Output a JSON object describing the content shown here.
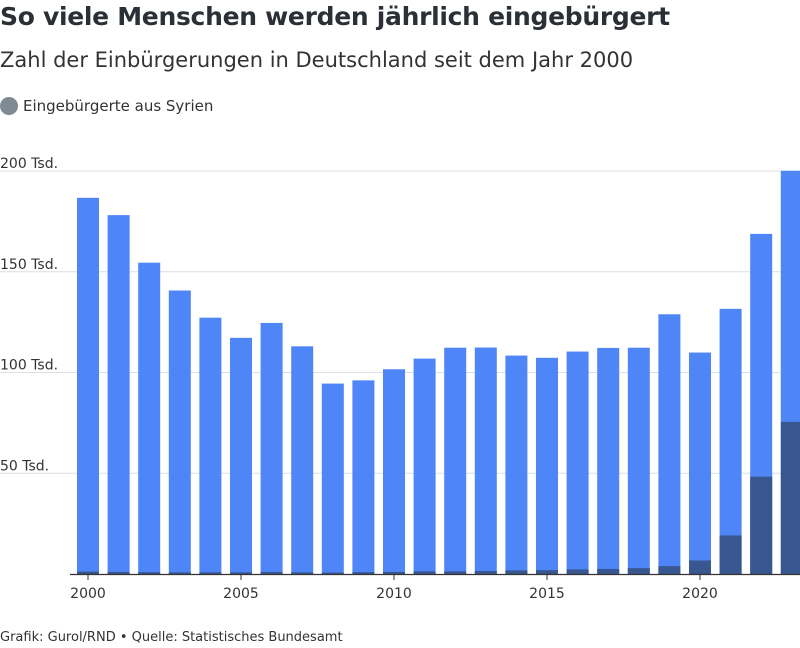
{
  "header": {
    "title": "So viele Menschen werden jährlich eingebürgert",
    "subtitle": "Zahl der Einbürgerungen in Deutschland seit dem Jahr 2000"
  },
  "legend": {
    "label": "Eingebürgerte aus Syrien",
    "dot_color": "#7f8a93"
  },
  "footer": {
    "text": "Grafik: Gurol/RND • Quelle: Statistisches Bundesamt"
  },
  "chart_data": {
    "type": "bar",
    "stacked": false,
    "overlay": true,
    "categories": [
      2000,
      2001,
      2002,
      2003,
      2004,
      2005,
      2006,
      2007,
      2008,
      2009,
      2010,
      2011,
      2012,
      2013,
      2014,
      2015,
      2016,
      2017,
      2018,
      2019,
      2020,
      2021,
      2022,
      2023
    ],
    "series": [
      {
        "color": "#4f86f7",
        "values": [
          186700,
          178100,
          154500,
          140700,
          127200,
          117200,
          124600,
          113000,
          94500,
          96100,
          101600,
          106900,
          112300,
          112400,
          108400,
          107300,
          110400,
          112200,
          112300,
          128900,
          109900,
          131600,
          168800,
          200100
        ]
      },
      {
        "name": "Eingebürgerte aus Syrien",
        "color": "#38568f",
        "values": [
          1200,
          1000,
          900,
          800,
          800,
          800,
          1000,
          800,
          700,
          900,
          1000,
          1300,
          1300,
          1500,
          1800,
          1900,
          2300,
          2500,
          2900,
          3900,
          6700,
          19100,
          48300,
          75500
        ]
      }
    ],
    "x_tick_labels": [
      "2000",
      "2005",
      "2010",
      "2015",
      "2020"
    ],
    "x_tick_years": [
      2000,
      2005,
      2010,
      2015,
      2020
    ],
    "y_tick_labels": [
      "50 Tsd.",
      "100 Tsd.",
      "150 Tsd.",
      "200 Tsd."
    ],
    "y_tick_values": [
      50000,
      100000,
      150000,
      200000
    ],
    "ylim": [
      0,
      200000
    ],
    "grid": true,
    "legend_position": "top-left"
  }
}
